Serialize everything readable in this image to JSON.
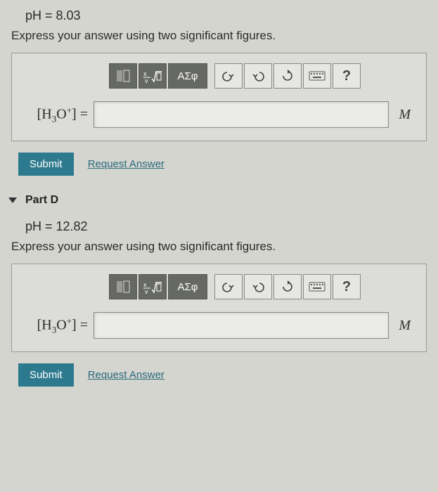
{
  "partC": {
    "ph_line": "pH = 8.03",
    "instruction": "Express your answer using two significant figures.",
    "lhs_html": "[H<span class='sub'>3</span>O<span class='sup'>+</span>] =",
    "unit": "M",
    "input_value": "",
    "toolbar": {
      "greek": "ΑΣφ",
      "help": "?"
    },
    "submit": "Submit",
    "request": "Request Answer"
  },
  "partD": {
    "title": "Part D",
    "ph_line": "pH = 12.82",
    "instruction": "Express your answer using two significant figures.",
    "lhs_html": "[H<span class='sub'>3</span>O<span class='sup'>+</span>] =",
    "unit": "M",
    "input_value": "",
    "toolbar": {
      "greek": "ΑΣφ",
      "help": "?"
    },
    "submit": "Submit",
    "request": "Request Answer"
  },
  "colors": {
    "panel_bg": "#dcdcd8",
    "body_bg": "#d5d5d0",
    "submit_bg": "#2d7a8e",
    "link": "#2a6a7c",
    "dark_btn": "#666863"
  }
}
